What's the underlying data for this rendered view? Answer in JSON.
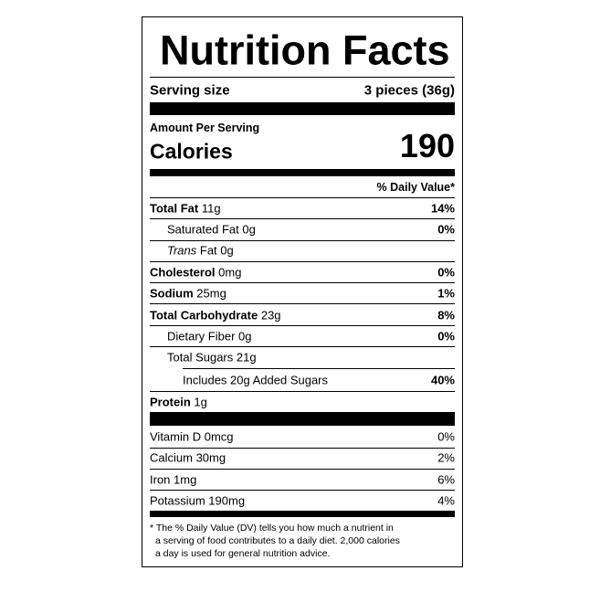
{
  "title": "Nutrition Facts",
  "serving": {
    "label": "Serving size",
    "value": "3 pieces (36g)"
  },
  "amount_per_serving": "Amount Per Serving",
  "calories": {
    "label": "Calories",
    "value": "190"
  },
  "dv_header": "% Daily Value*",
  "nutrients": [
    {
      "label": "Total Fat",
      "amount": "11g",
      "dv": "14%"
    },
    {
      "label": "Saturated Fat 0g",
      "dv": "0%"
    },
    {
      "label": "Trans",
      "amount": "Fat 0g"
    },
    {
      "label": "Cholesterol",
      "amount": "0mg",
      "dv": "0%"
    },
    {
      "label": "Sodium",
      "amount": "25mg",
      "dv": "1%"
    },
    {
      "label": "Total Carbohydrate",
      "amount": "23g",
      "dv": "8%"
    },
    {
      "label": "Dietary Fiber 0g",
      "dv": "0%"
    },
    {
      "label": "Total Sugars 21g"
    },
    {
      "label": "Includes 20g Added Sugars",
      "dv": "40%"
    },
    {
      "label": "Protein",
      "amount": "1g"
    }
  ],
  "vitamins": [
    {
      "label": "Vitamin D 0mcg",
      "dv": "0%"
    },
    {
      "label": "Calcium 30mg",
      "dv": "2%"
    },
    {
      "label": "Iron 1mg",
      "dv": "6%"
    },
    {
      "label": "Potassium 190mg",
      "dv": "4%"
    }
  ],
  "footnote": [
    "* The % Daily Value (DV) tells you how much a nutrient in",
    "a serving of food contributes to a daily diet. 2,000 calories",
    "a day is used for general nutrition advice."
  ]
}
